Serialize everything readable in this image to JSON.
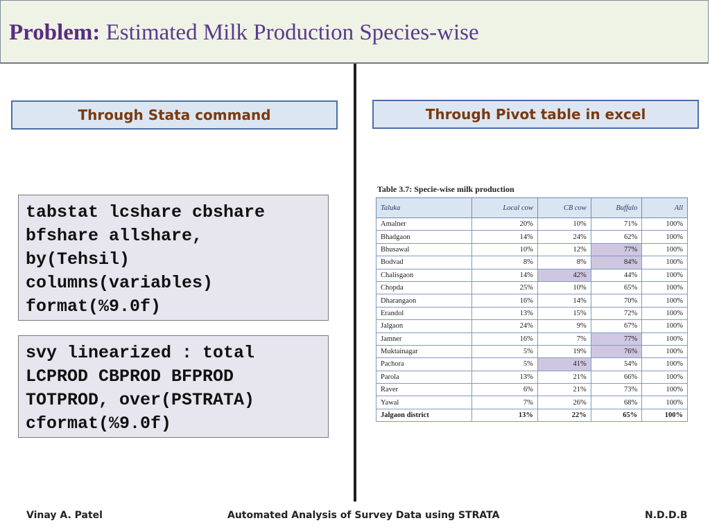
{
  "header": {
    "title_bold": "Problem:",
    "title_rest": " Estimated Milk Production Species-wise"
  },
  "left_section": {
    "label": "Through Stata command",
    "code_blocks": [
      "tabstat lcshare cbshare\nbfshare allshare,\nby(Tehsil)\ncolumns(variables)\nformat(%9.0f)",
      "svy linearized : total\nLCPROD CBPROD BFPROD\nTOTPROD, over(PSTRATA)\ncformat(%9.0f)"
    ]
  },
  "right_section": {
    "label": "Through Pivot table in excel",
    "table_caption": "Table 3.7: Specie-wise milk production",
    "headers": [
      "Taluka",
      "Local cow",
      "CB cow",
      "Buffalo",
      "All"
    ],
    "rows": [
      {
        "cells": [
          "Amalner",
          "20%",
          "10%",
          "71%",
          "100%"
        ],
        "highlight": []
      },
      {
        "cells": [
          "Bhadgaon",
          "14%",
          "24%",
          "62%",
          "100%"
        ],
        "highlight": []
      },
      {
        "cells": [
          "Bhusawal",
          "10%",
          "12%",
          "77%",
          "100%"
        ],
        "highlight": [
          3
        ]
      },
      {
        "cells": [
          "Bodvad",
          "8%",
          "8%",
          "84%",
          "100%"
        ],
        "highlight": [
          3
        ]
      },
      {
        "cells": [
          "Chalisgaon",
          "14%",
          "42%",
          "44%",
          "100%"
        ],
        "highlight": [
          2
        ]
      },
      {
        "cells": [
          "Chopda",
          "25%",
          "10%",
          "65%",
          "100%"
        ],
        "highlight": []
      },
      {
        "cells": [
          "Dharangaon",
          "16%",
          "14%",
          "70%",
          "100%"
        ],
        "highlight": []
      },
      {
        "cells": [
          "Erandol",
          "13%",
          "15%",
          "72%",
          "100%"
        ],
        "highlight": []
      },
      {
        "cells": [
          "Jalgaon",
          "24%",
          "9%",
          "67%",
          "100%"
        ],
        "highlight": []
      },
      {
        "cells": [
          "Jamner",
          "16%",
          "7%",
          "77%",
          "100%"
        ],
        "highlight": [
          3
        ]
      },
      {
        "cells": [
          "Muktainagar",
          "5%",
          "19%",
          "76%",
          "100%"
        ],
        "highlight": [
          3
        ]
      },
      {
        "cells": [
          "Pachora",
          "5%",
          "41%",
          "54%",
          "100%"
        ],
        "highlight": [
          2
        ]
      },
      {
        "cells": [
          "Parola",
          "13%",
          "21%",
          "66%",
          "100%"
        ],
        "highlight": []
      },
      {
        "cells": [
          "Raver",
          "6%",
          "21%",
          "73%",
          "100%"
        ],
        "highlight": []
      },
      {
        "cells": [
          "Yawal",
          "7%",
          "26%",
          "68%",
          "100%"
        ],
        "highlight": []
      }
    ],
    "total_row": [
      "Jalgaon district",
      "13%",
      "22%",
      "65%",
      "100%"
    ]
  },
  "footer": {
    "author": "Vinay A. Patel",
    "topic": "Automated Analysis of Survey Data using STRATA",
    "org": "N.D.D.B"
  },
  "colors": {
    "title": "#5a2d7e",
    "section_label": "#7a3a10",
    "highlight": "#cfc7e1"
  }
}
